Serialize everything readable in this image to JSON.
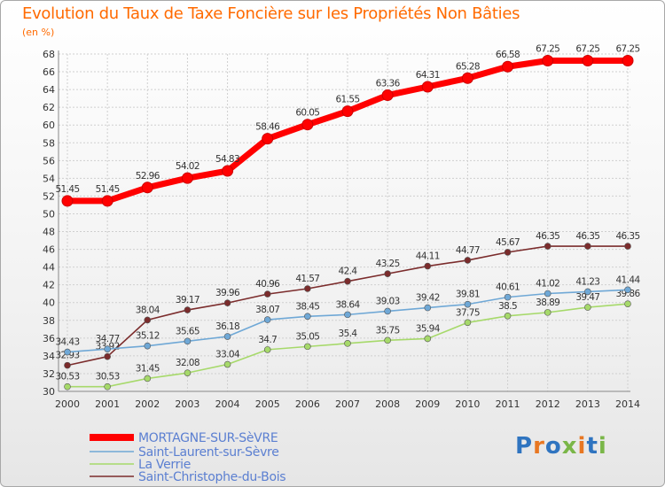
{
  "title": "Evolution du Taux de Taxe Foncière sur les Propriétés Non Bâties",
  "unit_label": "(en %)",
  "logo_text": "Proxiti",
  "chart_data": {
    "type": "line",
    "x": [
      "2000",
      "2001",
      "2002",
      "2003",
      "2004",
      "2005",
      "2006",
      "2007",
      "2008",
      "2009",
      "2010",
      "2011",
      "2012",
      "2013",
      "2014"
    ],
    "ylim": [
      30,
      68
    ],
    "ytick_step": 2,
    "grid": true,
    "legend_position": "bottom-left",
    "series": [
      {
        "name": "MORTAGNE-SUR-SèVRE",
        "color": "#ff0000",
        "values": [
          51.45,
          51.45,
          52.96,
          54.02,
          54.83,
          58.46,
          60.05,
          61.55,
          63.36,
          64.31,
          65.28,
          66.58,
          67.25,
          67.25,
          67.25
        ],
        "labels": [
          "51.45",
          "51.45",
          "52.96",
          "54.02",
          "54.83",
          "58.46",
          "60.05",
          "61.55",
          "63.36",
          "64.31",
          "65.28",
          "66.58",
          "67.25",
          "67.25",
          "67.25"
        ]
      },
      {
        "name": "Saint-Laurent-sur-Sèvre",
        "color": "#6fa8d6",
        "values": [
          34.43,
          34.77,
          35.12,
          35.65,
          36.18,
          38.07,
          38.45,
          38.64,
          39.03,
          39.42,
          39.81,
          40.61,
          41.02,
          41.23,
          41.44
        ],
        "labels": [
          "34.43",
          "34.77",
          "35.12",
          "35.65",
          "36.18",
          "38.07",
          "38.45",
          "38.64",
          "39.03",
          "39.42",
          "39.81",
          "40.61",
          "41.02",
          "41.23",
          "41.44"
        ]
      },
      {
        "name": "La Verrie",
        "color": "#a6d96a",
        "values": [
          30.53,
          30.53,
          31.45,
          32.08,
          33.04,
          34.7,
          35.05,
          35.4,
          35.75,
          35.94,
          37.75,
          38.5,
          38.89,
          39.47,
          39.86
        ],
        "labels": [
          "30.53",
          "30.53",
          "31.45",
          "32.08",
          "33.04",
          "34.7",
          "35.05",
          "35.4",
          "35.75",
          "35.94",
          "37.75",
          "38.5",
          "38.89",
          "39.47",
          "39.86"
        ]
      },
      {
        "name": "Saint-Christophe-du-Bois",
        "color": "#7b2c2c",
        "values": [
          32.93,
          33.92,
          38.04,
          39.17,
          39.96,
          40.96,
          41.57,
          42.4,
          43.25,
          44.11,
          44.77,
          45.67,
          46.35,
          46.35,
          46.35
        ],
        "labels": [
          "32.93",
          "33.92",
          "38.04",
          "39.17",
          "39.96",
          "40.96",
          "41.57",
          "42.4",
          "43.25",
          "44.11",
          "44.77",
          "45.67",
          "46.35",
          "46.35",
          "46.35"
        ]
      }
    ]
  }
}
